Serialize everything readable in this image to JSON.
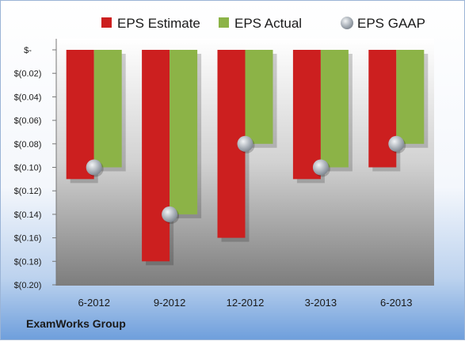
{
  "company": "ExamWorks Group",
  "chart_data": {
    "type": "bar",
    "categories": [
      "6-2012",
      "9-2012",
      "12-2012",
      "3-2013",
      "6-2013"
    ],
    "series": [
      {
        "name": "EPS Estimate",
        "type": "bar",
        "color": "#cc1f1f",
        "values": [
          -0.11,
          -0.18,
          -0.16,
          -0.11,
          -0.1
        ]
      },
      {
        "name": "EPS Actual",
        "type": "bar",
        "color": "#8cb347",
        "values": [
          -0.1,
          -0.14,
          -0.08,
          -0.1,
          -0.08
        ]
      },
      {
        "name": "EPS GAAP",
        "type": "marker",
        "color": "#9aa3ad",
        "values": [
          -0.1,
          -0.14,
          -0.08,
          -0.1,
          -0.08
        ]
      }
    ],
    "ylim": [
      -0.2,
      0
    ],
    "yticks": [
      {
        "value": 0,
        "label": "$-"
      },
      {
        "value": -0.02,
        "label": "$(0.02)"
      },
      {
        "value": -0.04,
        "label": "$(0.04)"
      },
      {
        "value": -0.06,
        "label": "$(0.06)"
      },
      {
        "value": -0.08,
        "label": "$(0.08)"
      },
      {
        "value": -0.1,
        "label": "$(0.10)"
      },
      {
        "value": -0.12,
        "label": "$(0.12)"
      },
      {
        "value": -0.14,
        "label": "$(0.14)"
      },
      {
        "value": -0.16,
        "label": "$(0.16)"
      },
      {
        "value": -0.18,
        "label": "$(0.18)"
      },
      {
        "value": -0.2,
        "label": "$(0.20)"
      }
    ],
    "legend_position": "top",
    "grid": false
  }
}
